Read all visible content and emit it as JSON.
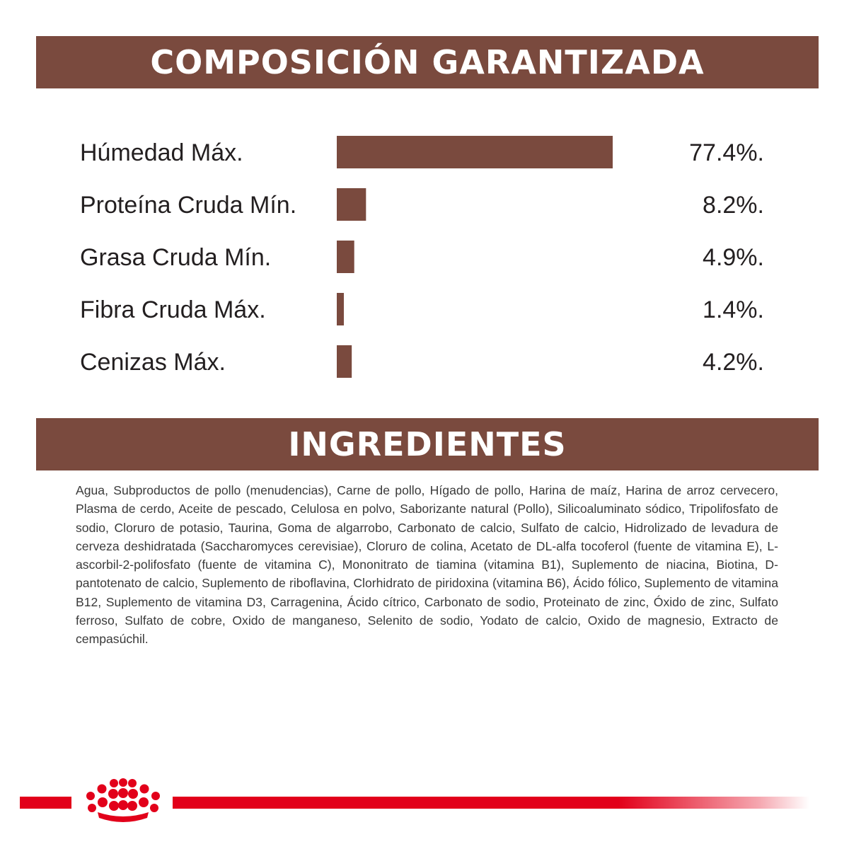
{
  "composition": {
    "title": "COMPOSICIÓN GARANTIZADA"
  },
  "chart_data": {
    "type": "bar",
    "orientation": "horizontal",
    "categories": [
      "Húmedad Máx.",
      "Proteína Cruda Mín.",
      "Grasa Cruda Mín.",
      "Fibra Cruda Máx.",
      "Cenizas Máx."
    ],
    "values": [
      77.4,
      8.2,
      4.9,
      1.4,
      4.2
    ],
    "value_labels": [
      "77.4%.",
      "8.2%.",
      "4.9%.",
      "1.4%.",
      "4.2%."
    ],
    "xlim": [
      0,
      77.4
    ],
    "grid": false,
    "legend": "none",
    "bar_color": "#7a4a3e"
  },
  "ingredients": {
    "title": "INGREDIENTES",
    "text": "Agua, Subproductos de pollo (menudencias), Carne de pollo, Hígado de pollo, Harina de maíz, Harina de arroz cervecero, Plasma de cerdo, Aceite de pescado, Celulosa en polvo, Saborizante natural (Pollo), Silicoaluminato sódico, Tripolifosfato de sodio, Cloruro de potasio, Taurina, Goma de algarrobo, Carbonato de calcio, Sulfato de calcio, Hidrolizado de levadura de cerveza deshidratada (Saccharomyces cerevisiae), Cloruro de colina, Acetato de DL-alfa tocoferol (fuente de vitamina E), L-ascorbil-2-polifosfato (fuente de vitamina C), Mononitrato de tiamina (vitamina B1), Suplemento de niacina, Biotina, D-pantotenato de calcio, Suplemento de riboflavina, Clorhidrato de piridoxina (vitamina B6), Ácido fólico, Suplemento de vitamina B12, Suplemento de vitamina D3, Carragenina, Ácido cítrico, Carbonato de sodio, Proteinato de zinc, Óxido de zinc, Sulfato ferroso, Sulfato de cobre, Oxido de manganeso, Selenito de sodio, Yodato de calcio, Oxido de magnesio, Extracto de cempasúchil."
  },
  "footer": {
    "logo_icon": "crown-icon",
    "accent_color": "#e2001a"
  },
  "colors": {
    "banner": "#7a4a3e",
    "bar": "#7a4a3e",
    "text": "#231f20",
    "brand_red": "#e2001a"
  }
}
